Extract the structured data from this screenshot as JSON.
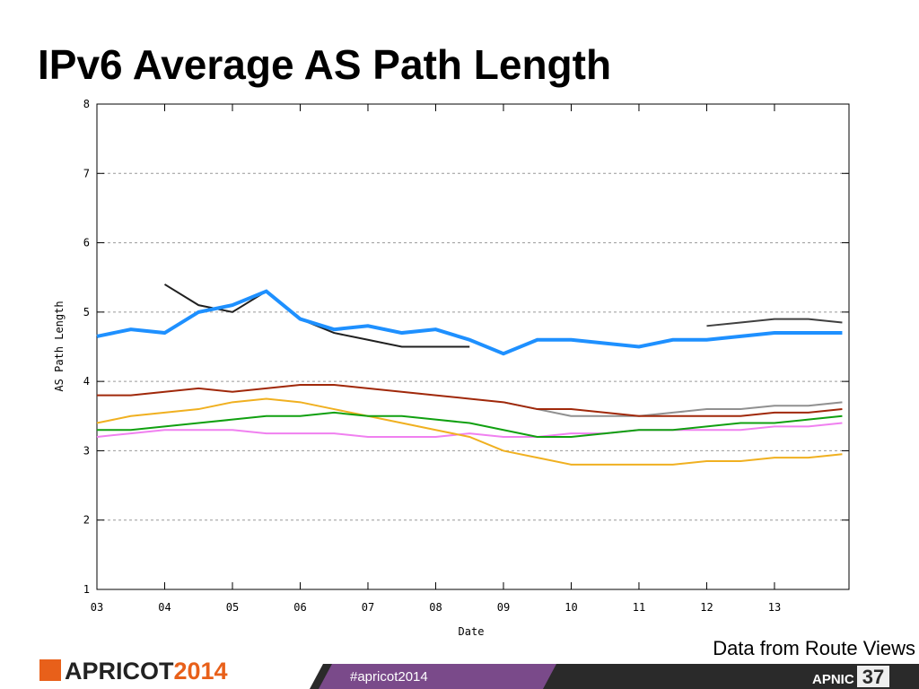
{
  "chart_data": {
    "type": "line",
    "title": "IPv6 Average AS Path Length",
    "xlabel": "Date",
    "ylabel": "AS Path Length",
    "x": [
      3,
      3.5,
      4,
      4.5,
      5,
      5.5,
      6,
      6.5,
      7,
      7.5,
      8,
      8.5,
      9,
      9.5,
      10,
      10.5,
      11,
      11.5,
      12,
      12.5,
      13,
      13.5,
      14
    ],
    "series": [
      {
        "color": "#f080f0",
        "values": [
          3.2,
          3.25,
          3.3,
          3.3,
          3.3,
          3.25,
          3.25,
          3.25,
          3.2,
          3.2,
          3.2,
          3.25,
          3.2,
          3.2,
          3.25,
          3.25,
          3.3,
          3.3,
          3.3,
          3.3,
          3.35,
          3.35,
          3.4
        ]
      },
      {
        "color": "#f0b020",
        "values": [
          3.4,
          3.5,
          3.55,
          3.6,
          3.7,
          3.75,
          3.7,
          3.6,
          3.5,
          3.4,
          3.3,
          3.2,
          3.0,
          2.9,
          2.8,
          2.8,
          2.8,
          2.8,
          2.85,
          2.85,
          2.9,
          2.9,
          2.95
        ]
      },
      {
        "color": "#10a010",
        "values": [
          3.3,
          3.3,
          3.35,
          3.4,
          3.45,
          3.5,
          3.5,
          3.55,
          3.5,
          3.5,
          3.45,
          3.4,
          3.3,
          3.2,
          3.2,
          3.25,
          3.3,
          3.3,
          3.35,
          3.4,
          3.4,
          3.45,
          3.5
        ]
      },
      {
        "color": "#909090",
        "values": [
          null,
          null,
          null,
          null,
          null,
          null,
          null,
          null,
          null,
          null,
          null,
          null,
          3.7,
          3.6,
          3.5,
          3.5,
          3.5,
          3.55,
          3.6,
          3.6,
          3.65,
          3.65,
          3.7
        ]
      },
      {
        "color": "#a0280a",
        "values": [
          3.8,
          3.8,
          3.85,
          3.9,
          3.85,
          3.9,
          3.95,
          3.95,
          3.9,
          3.85,
          3.8,
          3.75,
          3.7,
          3.6,
          3.6,
          3.55,
          3.5,
          3.5,
          3.5,
          3.5,
          3.55,
          3.55,
          3.6
        ]
      },
      {
        "color": "#202020",
        "values": [
          null,
          null,
          5.4,
          5.1,
          5.0,
          5.3,
          4.9,
          4.7,
          4.6,
          4.5,
          4.5,
          4.5,
          null,
          null,
          null,
          null,
          null,
          null,
          null,
          null,
          null,
          null,
          null
        ]
      },
      {
        "color": "#404040",
        "values": [
          null,
          null,
          null,
          null,
          null,
          null,
          null,
          null,
          null,
          null,
          null,
          null,
          null,
          null,
          null,
          null,
          null,
          null,
          4.8,
          4.85,
          4.9,
          4.9,
          4.85
        ]
      },
      {
        "color": "#1e90ff",
        "values": [
          4.65,
          4.75,
          4.7,
          5.0,
          5.1,
          5.3,
          4.9,
          4.75,
          4.8,
          4.7,
          4.75,
          4.6,
          4.4,
          4.6,
          4.6,
          4.55,
          4.5,
          4.6,
          4.6,
          4.65,
          4.7,
          4.7,
          4.7
        ]
      }
    ],
    "xlim": [
      3,
      14.1
    ],
    "xticks": [
      {
        "value": 3,
        "label": "03"
      },
      {
        "value": 4,
        "label": "04"
      },
      {
        "value": 5,
        "label": "05"
      },
      {
        "value": 6,
        "label": "06"
      },
      {
        "value": 7,
        "label": "07"
      },
      {
        "value": 8,
        "label": "08"
      },
      {
        "value": 9,
        "label": "09"
      },
      10,
      11,
      12,
      13
    ],
    "ylim": [
      1,
      8
    ],
    "yticks": [
      1,
      2,
      3,
      4,
      5,
      6,
      7,
      8
    ],
    "grid": true
  },
  "note": "Data from Route Views",
  "footer": {
    "event": "APRICOT",
    "year": "2014",
    "hashtag": "#apricot2014",
    "org": "APNIC",
    "number": "37"
  }
}
